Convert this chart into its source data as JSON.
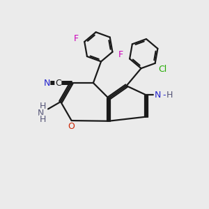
{
  "bg_color": "#ebebeb",
  "bond_color": "#1a1a1a",
  "bond_lw": 1.6,
  "dbo": 0.07,
  "colors": {
    "N": "#2222cc",
    "O": "#cc2200",
    "F": "#cc00bb",
    "Cl": "#22aa00",
    "H": "#555577",
    "C": "#1a1a1a",
    "CN_N": "#2222cc"
  },
  "fs": 9.0
}
